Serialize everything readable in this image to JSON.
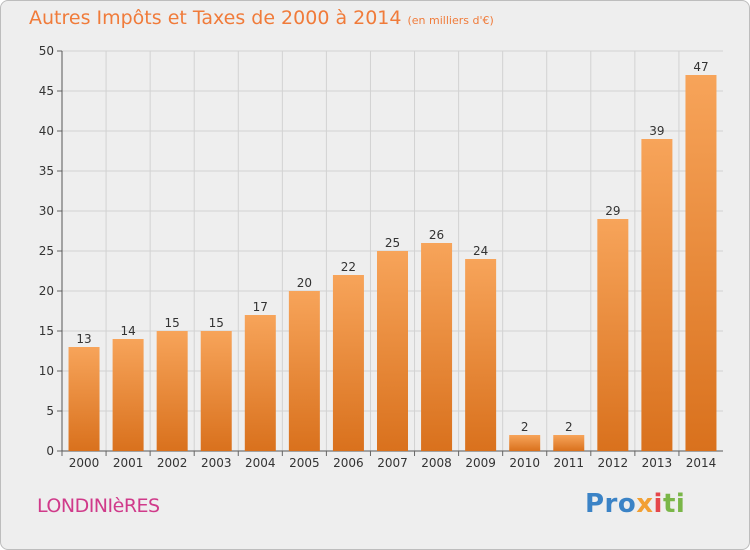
{
  "chart_data": {
    "type": "bar",
    "title": "Autres Impôts et Taxes de 2000 à 2014",
    "subtitle": "(en milliers d'€)",
    "categories": [
      "2000",
      "2001",
      "2002",
      "2003",
      "2004",
      "2005",
      "2006",
      "2007",
      "2008",
      "2009",
      "2010",
      "2011",
      "2012",
      "2013",
      "2014"
    ],
    "values": [
      13,
      14,
      15,
      15,
      17,
      20,
      22,
      25,
      26,
      24,
      2,
      2,
      29,
      39,
      47
    ],
    "ylim": [
      0,
      50
    ],
    "yticks": [
      0,
      5,
      10,
      15,
      20,
      25,
      30,
      35,
      40,
      45,
      50
    ],
    "grid": true,
    "bar_color_top": "#f7a45a",
    "bar_color_bottom": "#d9711d"
  },
  "location": "LONDINIèRES",
  "logo": {
    "p1": "Pro",
    "p2": "x",
    "p3": "i",
    "p4": "ti"
  }
}
